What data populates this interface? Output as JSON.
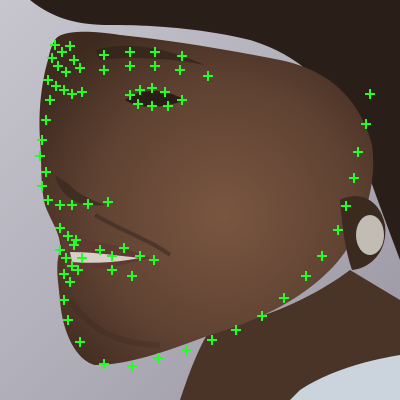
{
  "image": {
    "subject": "face-profile-with-landmark-markers",
    "marker_color": "#22ff22",
    "background_color": "#b8b6bf",
    "hair_color": "#2a1f18",
    "skin_color": "#6b4a37",
    "shadow_color": "#3b2a20",
    "lip_color": "#5e3a32",
    "earring_color": "#d9d6cf",
    "collar_color": "#cbd3dd",
    "marker_icon": "plus-icon"
  }
}
